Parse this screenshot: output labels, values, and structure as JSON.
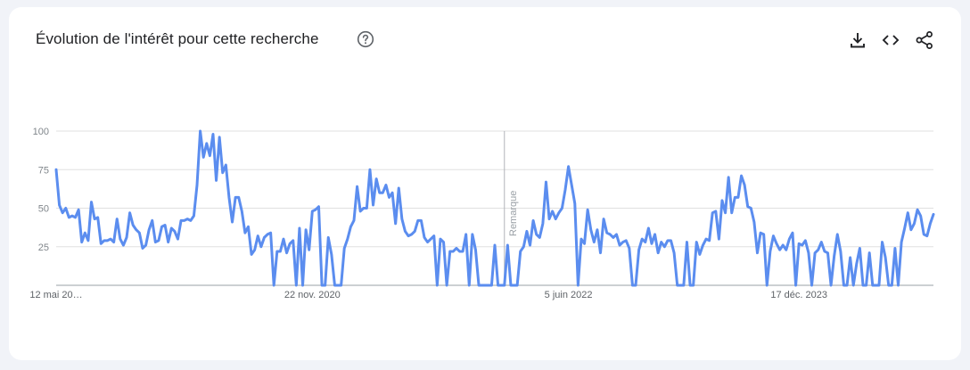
{
  "card": {
    "title": "Évolution de l'intérêt pour cette recherche",
    "help_icon": "help-circle-icon",
    "tools": {
      "download_icon": "download-icon",
      "embed_icon": "embed-code-icon",
      "share_icon": "share-icon"
    }
  },
  "colors": {
    "line": "#5b8def",
    "grid": "#e0e0e0",
    "axis": "#9aa0a6"
  },
  "chart_data": {
    "type": "line",
    "ylim": [
      0,
      100
    ],
    "yticks": [
      "25",
      "50",
      "75",
      "100"
    ],
    "ytick_values": [
      25,
      50,
      75,
      100
    ],
    "xtick_labels": [
      "12 mai 20…",
      "22 nov. 2020",
      "5 juin 2022",
      "17 déc. 2023"
    ],
    "xtick_index": [
      0,
      80,
      160,
      232
    ],
    "annotation": {
      "label": "Remarque",
      "index": 140
    },
    "grid": true,
    "series": [
      {
        "values": [
          75,
          52,
          47,
          50,
          44,
          45,
          44,
          49,
          28,
          34,
          29,
          54,
          43,
          44,
          27,
          29,
          29,
          30,
          28,
          43,
          30,
          26,
          31,
          47,
          39,
          36,
          34,
          24,
          26,
          36,
          42,
          28,
          29,
          38,
          39,
          28,
          37,
          35,
          30,
          42,
          42,
          43,
          42,
          45,
          65,
          100,
          83,
          92,
          84,
          98,
          68,
          96,
          73,
          78,
          57,
          41,
          57,
          57,
          48,
          34,
          38,
          20,
          23,
          32,
          25,
          31,
          33,
          34,
          0,
          22,
          22,
          30,
          21,
          27,
          29,
          0,
          37,
          0,
          36,
          23,
          48,
          49,
          51,
          0,
          0,
          31,
          20,
          0,
          0,
          0,
          24,
          30,
          38,
          42,
          64,
          48,
          50,
          50,
          75,
          52,
          69,
          60,
          60,
          65,
          57,
          60,
          40,
          63,
          43,
          35,
          32,
          33,
          35,
          42,
          42,
          31,
          28,
          30,
          32,
          0,
          30,
          28,
          0,
          22,
          22,
          24,
          22,
          22,
          33,
          0,
          33,
          23,
          0,
          0,
          0,
          0,
          0,
          26,
          0,
          0,
          0,
          26,
          0,
          0,
          0,
          22,
          25,
          35,
          26,
          42,
          33,
          31,
          40,
          67,
          43,
          48,
          43,
          47,
          50,
          62,
          77,
          65,
          53,
          0,
          30,
          27,
          49,
          36,
          28,
          36,
          21,
          43,
          34,
          33,
          31,
          33,
          26,
          28,
          29,
          24,
          0,
          0,
          23,
          30,
          28,
          37,
          27,
          33,
          21,
          28,
          25,
          29,
          29,
          21,
          0,
          0,
          0,
          28,
          0,
          0,
          28,
          20,
          26,
          30,
          29,
          47,
          48,
          30,
          55,
          47,
          70,
          47,
          57,
          57,
          71,
          65,
          51,
          50,
          41,
          21,
          34,
          33,
          0,
          22,
          32,
          27,
          23,
          26,
          23,
          30,
          34,
          0,
          27,
          26,
          29,
          21,
          0,
          21,
          23,
          28,
          22,
          21,
          0,
          19,
          33,
          22,
          0,
          0,
          18,
          0,
          14,
          24,
          0,
          0,
          21,
          0,
          0,
          0,
          28,
          18,
          0,
          0,
          24,
          0,
          28,
          37,
          47,
          36,
          40,
          49,
          45,
          33,
          32,
          40,
          46
        ]
      }
    ]
  }
}
